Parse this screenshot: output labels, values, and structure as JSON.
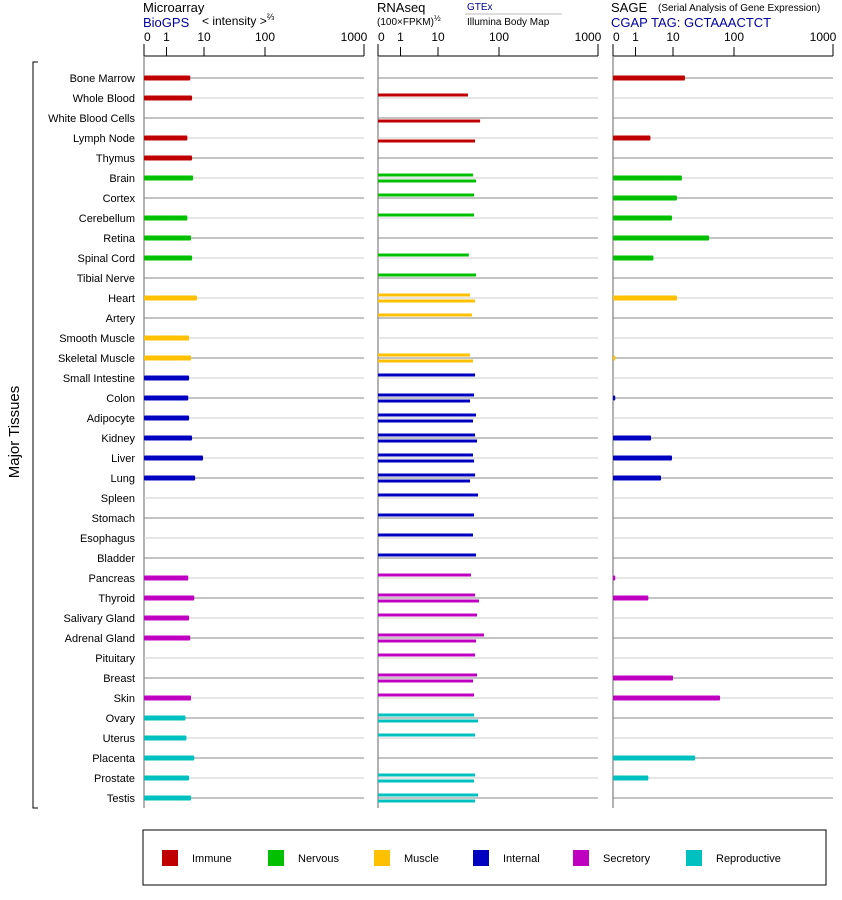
{
  "chart_data": {
    "type": "bar",
    "orientation": "horizontal",
    "ylabel": "Major Tissues",
    "categories": [
      "Bone Marrow",
      "Whole Blood",
      "White Blood Cells",
      "Lymph Node",
      "Thymus",
      "Brain",
      "Cortex",
      "Cerebellum",
      "Retina",
      "Spinal Cord",
      "Tibial Nerve",
      "Heart",
      "Artery",
      "Smooth Muscle",
      "Skeletal Muscle",
      "Small Intestine",
      "Colon",
      "Adipocyte",
      "Kidney",
      "Liver",
      "Lung",
      "Spleen",
      "Stomach",
      "Esophagus",
      "Bladder",
      "Pancreas",
      "Thyroid",
      "Salivary Gland",
      "Adrenal Gland",
      "Pituitary",
      "Breast",
      "Skin",
      "Ovary",
      "Uterus",
      "Placenta",
      "Prostate",
      "Testis"
    ],
    "category_group": [
      "Immune",
      "Immune",
      "Immune",
      "Immune",
      "Immune",
      "Nervous",
      "Nervous",
      "Nervous",
      "Nervous",
      "Nervous",
      "Nervous",
      "Muscle",
      "Muscle",
      "Muscle",
      "Muscle",
      "Internal",
      "Internal",
      "Internal",
      "Internal",
      "Internal",
      "Internal",
      "Internal",
      "Internal",
      "Internal",
      "Internal",
      "Secretory",
      "Secretory",
      "Secretory",
      "Secretory",
      "Secretory",
      "Secretory",
      "Secretory",
      "Reproductive",
      "Reproductive",
      "Reproductive",
      "Reproductive",
      "Reproductive"
    ],
    "panels": [
      {
        "title": "Microarray",
        "source": "BioGPS",
        "unit": "< intensity >",
        "unit_exp": "⅔",
        "ticks": [
          0,
          1,
          10,
          100,
          1000
        ],
        "series": [
          {
            "name": "BioGPS",
            "values": [
              4.3,
              4.8,
              null,
              3.6,
              4.8,
              5.1,
              null,
              3.6,
              4.5,
              4.8,
              null,
              6.5,
              null,
              4.0,
              4.5,
              4.0,
              3.8,
              4.0,
              4.8,
              9.4,
              5.8,
              null,
              null,
              null,
              null,
              3.8,
              5.5,
              4.0,
              4.3,
              null,
              null,
              4.5,
              3.2,
              3.4,
              5.5,
              4.0,
              4.5
            ]
          }
        ]
      },
      {
        "title": "RNAseq",
        "unit": "(100×FPKM)",
        "unit_exp": "½",
        "ticks": [
          0,
          1,
          10,
          100,
          1000
        ],
        "series": [
          {
            "name": "GTEx",
            "values": [
              null,
              31,
              null,
              null,
              null,
              37.5,
              39,
              39,
              null,
              32,
              42,
              33.5,
              36,
              null,
              33.5,
              40.5,
              39,
              42,
              40.5,
              37.5,
              40.5,
              45.3,
              39,
              37.5,
              42,
              34.7,
              40.5,
              43.6,
              56.7,
              40.5,
              43.6,
              39,
              39,
              40.5,
              null,
              40.5,
              45.3
            ]
          },
          {
            "name": "Illumina Body Map",
            "values": [
              null,
              null,
              49,
              40.5,
              null,
              42,
              null,
              null,
              null,
              null,
              null,
              40.5,
              null,
              null,
              37.5,
              null,
              33.5,
              37.5,
              43.6,
              39,
              33.5,
              null,
              null,
              null,
              null,
              null,
              47,
              null,
              42,
              null,
              37.5,
              null,
              45.3,
              null,
              null,
              39,
              40.5
            ]
          }
        ]
      },
      {
        "title": "SAGE",
        "subtitle": "(Serial Analysis of Gene Expression)",
        "source": "CGAP TAG: GCTAAACTCT",
        "ticks": [
          0,
          1,
          10,
          100,
          1000
        ],
        "series": [
          {
            "name": "SAGE",
            "values": [
              15.7,
              null,
              null,
              2.5,
              null,
              14,
              11.6,
              9.4,
              39,
              3.0,
              null,
              11.6,
              null,
              null,
              0.1,
              null,
              0.1,
              null,
              2.6,
              9.4,
              4.8,
              null,
              null,
              null,
              null,
              0.1,
              2.2,
              null,
              null,
              null,
              10,
              59,
              null,
              null,
              23,
              2.2,
              null
            ]
          }
        ]
      }
    ],
    "legend": [
      {
        "label": "Immune",
        "color": "#c00000"
      },
      {
        "label": "Nervous",
        "color": "#00c000"
      },
      {
        "label": "Muscle",
        "color": "#ffc000"
      },
      {
        "label": "Internal",
        "color": "#0000c0"
      },
      {
        "label": "Secretory",
        "color": "#c000c0"
      },
      {
        "label": "Reproductive",
        "color": "#00c0c0"
      }
    ],
    "legend_placement": "bottom",
    "link_color": "#0000a0"
  }
}
